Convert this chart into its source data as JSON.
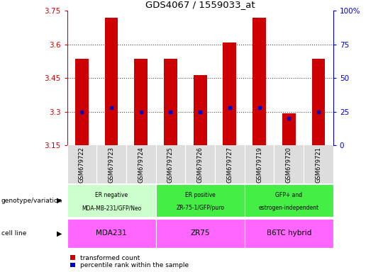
{
  "title": "GDS4067 / 1559033_at",
  "samples": [
    "GSM679722",
    "GSM679723",
    "GSM679724",
    "GSM679725",
    "GSM679726",
    "GSM679727",
    "GSM679719",
    "GSM679720",
    "GSM679721"
  ],
  "bar_top": [
    3.535,
    3.72,
    3.535,
    3.535,
    3.465,
    3.61,
    3.72,
    3.295,
    3.535
  ],
  "bar_bottom": 3.15,
  "blue_pct": [
    25,
    28,
    25,
    25,
    25,
    28,
    28,
    20,
    25
  ],
  "ylim_left": [
    3.15,
    3.75
  ],
  "ylim_right": [
    0,
    100
  ],
  "yticks_left": [
    3.15,
    3.3,
    3.45,
    3.6,
    3.75
  ],
  "yticks_right": [
    0,
    25,
    50,
    75,
    100
  ],
  "ytick_labels_right": [
    "0",
    "25",
    "50",
    "75",
    "100%"
  ],
  "bar_color": "#cc0000",
  "blue_color": "#0000cc",
  "grid_color": "#444444",
  "axis_color_left": "#cc0000",
  "axis_color_right": "#0000cc",
  "genotype_groups": [
    {
      "label": "ER negative\nMDA-MB-231/GFP/Neo",
      "span": [
        0,
        3
      ],
      "color": "#ccffcc"
    },
    {
      "label": "ER positive\nZR-75-1/GFP/puro",
      "span": [
        3,
        6
      ],
      "color": "#44ee44"
    },
    {
      "label": "GFP+ and\nestrogen-independent",
      "span": [
        6,
        9
      ],
      "color": "#44ee44"
    }
  ],
  "cell_line_groups": [
    {
      "label": "MDA231",
      "span": [
        0,
        3
      ],
      "color": "#ff66ff"
    },
    {
      "label": "ZR75",
      "span": [
        3,
        6
      ],
      "color": "#ff66ff"
    },
    {
      "label": "B6TC hybrid",
      "span": [
        6,
        9
      ],
      "color": "#ff66ff"
    }
  ],
  "legend_red_label": "transformed count",
  "legend_blue_label": "percentile rank within the sample",
  "genotype_row_label": "genotype/variation",
  "cell_line_row_label": "cell line"
}
